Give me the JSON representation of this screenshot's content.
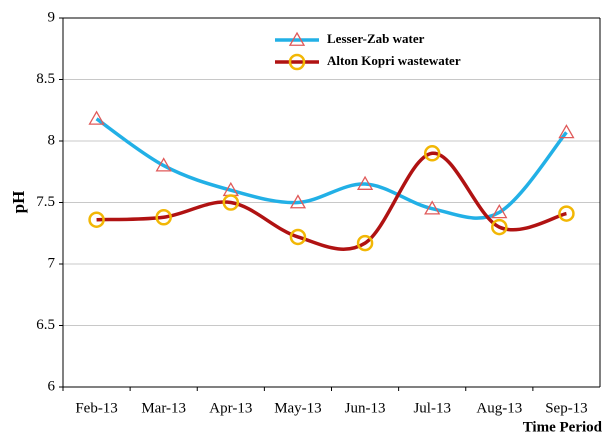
{
  "chart_data": {
    "type": "line",
    "y_label": "pH",
    "x_label": "Time Period",
    "categories": [
      "Feb-13",
      "Mar-13",
      "Apr-13",
      "May-13",
      "Jun-13",
      "Jul-13",
      "Aug-13",
      "Sep-13"
    ],
    "series": [
      {
        "name": "Lesser-Zab water",
        "color": "#22b0e6",
        "marker": "triangle",
        "marker_color": "#e05a5a",
        "values": [
          8.18,
          7.8,
          7.6,
          7.5,
          7.65,
          7.45,
          7.42,
          8.07
        ]
      },
      {
        "name": "Alton Kopri wastewater",
        "color": "#b01212",
        "marker": "circle",
        "marker_color": "#f2b705",
        "values": [
          7.36,
          7.38,
          7.5,
          7.22,
          7.17,
          7.9,
          7.3,
          7.41
        ]
      }
    ],
    "ylim": [
      6,
      9
    ],
    "yticks": [
      6,
      6.5,
      7,
      7.5,
      8,
      8.5,
      9
    ],
    "grid": true,
    "legend": "upper center"
  }
}
